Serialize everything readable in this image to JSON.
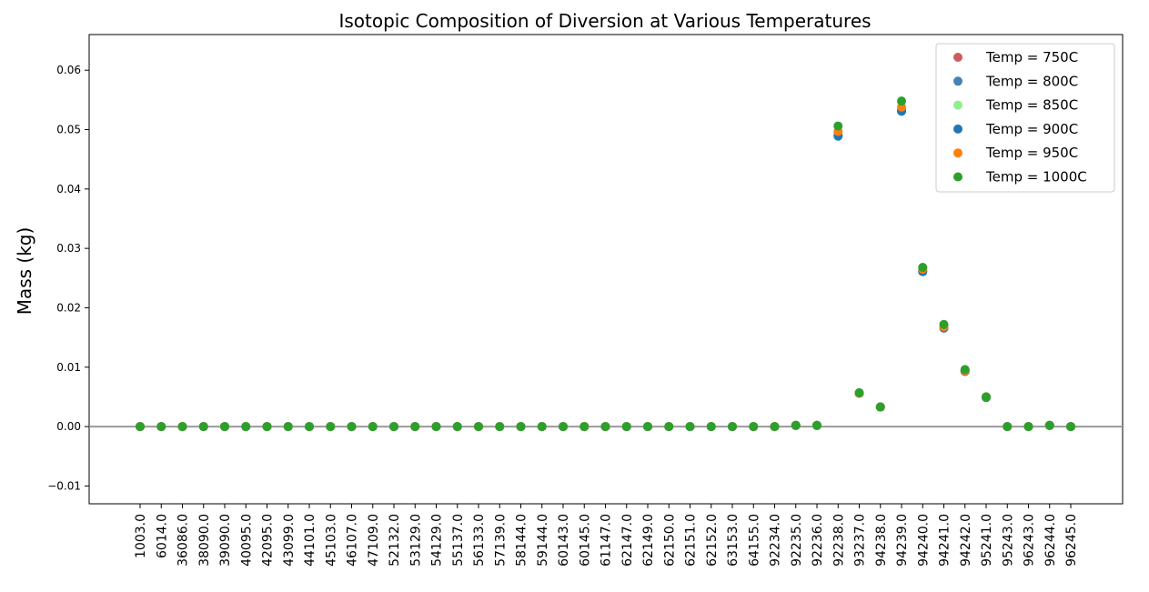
{
  "chart_data": {
    "type": "scatter",
    "title": "Isotopic Composition of Diversion at Various Temperatures",
    "xlabel": "",
    "ylabel": "Mass (kg)",
    "ylim": [
      -0.013,
      0.066
    ],
    "yticks": [
      -0.01,
      0.0,
      0.01,
      0.02,
      0.03,
      0.04,
      0.05,
      0.06
    ],
    "ytick_labels": [
      "−0.01",
      "0.00",
      "0.01",
      "0.02",
      "0.03",
      "0.04",
      "0.05",
      "0.06"
    ],
    "zero_line": true,
    "grid": false,
    "legend_position": "top-right",
    "categories": [
      "1003.0",
      "6014.0",
      "36086.0",
      "38090.0",
      "39090.0",
      "40095.0",
      "42095.0",
      "43099.0",
      "44101.0",
      "45103.0",
      "46107.0",
      "47109.0",
      "52132.0",
      "53129.0",
      "54129.0",
      "55137.0",
      "56133.0",
      "57139.0",
      "58144.0",
      "59144.0",
      "60143.0",
      "60145.0",
      "61147.0",
      "62147.0",
      "62149.0",
      "62150.0",
      "62151.0",
      "62152.0",
      "63153.0",
      "64155.0",
      "92234.0",
      "92235.0",
      "92236.0",
      "92238.0",
      "93237.0",
      "94238.0",
      "94239.0",
      "94240.0",
      "94241.0",
      "94242.0",
      "95241.0",
      "95243.0",
      "96243.0",
      "96244.0",
      "96245.0"
    ],
    "series": [
      {
        "name": "Temp = 750C",
        "color": "#cd5c5c",
        "values": [
          0,
          0,
          0,
          0,
          0,
          0,
          0,
          0,
          0,
          0,
          0,
          0,
          0,
          0,
          0,
          0,
          0,
          0,
          0,
          0,
          0,
          0,
          0,
          0,
          0,
          0,
          0,
          0,
          0,
          0,
          0,
          0.0002,
          0.0002,
          0.0492,
          0.0056,
          0.0033,
          0.0532,
          0.0262,
          0.0166,
          0.0093,
          0.0049,
          0,
          0,
          0.0002,
          0
        ]
      },
      {
        "name": "Temp = 800C",
        "color": "#4682b4",
        "values": [
          0,
          0,
          0,
          0,
          0,
          0,
          0,
          0,
          0,
          0,
          0,
          0,
          0,
          0,
          0,
          0,
          0,
          0,
          0,
          0,
          0,
          0,
          0,
          0,
          0,
          0,
          0,
          0,
          0,
          0,
          0,
          0.0002,
          0.0002,
          0.049,
          0.0056,
          0.0033,
          0.0531,
          0.0261,
          0.0166,
          0.0093,
          0.0049,
          0,
          0,
          0.0002,
          0
        ]
      },
      {
        "name": "Temp = 850C",
        "color": "#90ee90",
        "values": [
          0,
          0,
          0,
          0,
          0,
          0,
          0,
          0,
          0,
          0,
          0,
          0,
          0,
          0,
          0,
          0,
          0,
          0,
          0,
          0,
          0,
          0,
          0,
          0,
          0,
          0,
          0,
          0,
          0,
          0,
          0,
          0.0002,
          0.0002,
          0.0494,
          0.0056,
          0.0033,
          0.0535,
          0.0263,
          0.0167,
          0.0094,
          0.0049,
          0,
          0,
          0.0002,
          0
        ]
      },
      {
        "name": "Temp = 900C",
        "color": "#1f77b4",
        "values": [
          0,
          0,
          0,
          0,
          0,
          0,
          0,
          0,
          0,
          0,
          0,
          0,
          0,
          0,
          0,
          0,
          0,
          0,
          0,
          0,
          0,
          0,
          0,
          0,
          0,
          0,
          0,
          0,
          0,
          0,
          0,
          0.0002,
          0.0002,
          0.0489,
          0.0056,
          0.0033,
          0.0531,
          0.0261,
          0.0166,
          0.0093,
          0.0049,
          0,
          0,
          0.0002,
          0
        ]
      },
      {
        "name": "Temp = 950C",
        "color": "#ff7f0e",
        "values": [
          0,
          0,
          0,
          0,
          0,
          0,
          0,
          0,
          0,
          0,
          0,
          0,
          0,
          0,
          0,
          0,
          0,
          0,
          0,
          0,
          0,
          0,
          0,
          0,
          0,
          0,
          0,
          0,
          0,
          0,
          0,
          0.0002,
          0.0002,
          0.0497,
          0.0056,
          0.0033,
          0.0538,
          0.0265,
          0.0168,
          0.0094,
          0.005,
          0,
          0,
          0.0002,
          0
        ]
      },
      {
        "name": "Temp = 1000C",
        "color": "#2ca02c",
        "values": [
          0,
          0,
          0,
          0,
          0,
          0,
          0,
          0,
          0,
          0,
          0,
          0,
          0,
          0,
          0,
          0,
          0,
          0,
          0,
          0,
          0,
          0,
          0,
          0,
          0,
          0,
          0,
          0,
          0,
          0,
          0,
          0.0002,
          0.0002,
          0.0506,
          0.0057,
          0.0033,
          0.0548,
          0.0268,
          0.0172,
          0.0096,
          0.005,
          0,
          0,
          0.0002,
          0
        ]
      }
    ]
  }
}
